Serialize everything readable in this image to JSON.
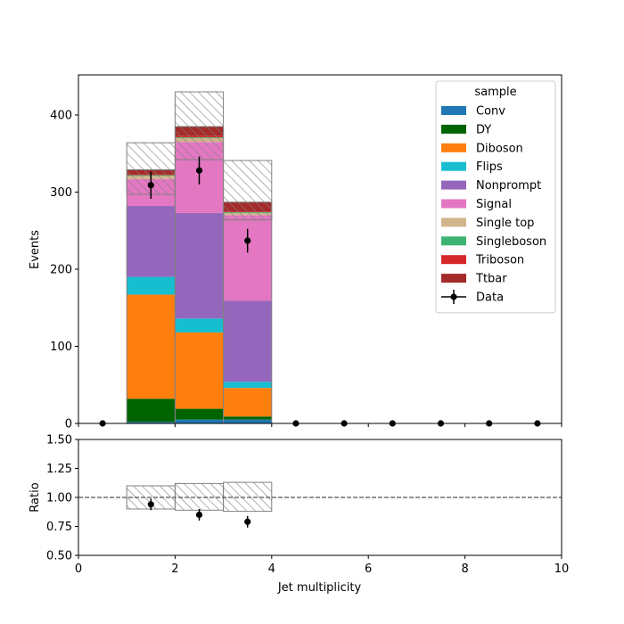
{
  "chart_data": {
    "type": "bar",
    "stacked": true,
    "xlabel": "Jet multiplicity",
    "bins": [
      [
        0,
        1
      ],
      [
        1,
        2
      ],
      [
        2,
        3
      ],
      [
        3,
        4
      ],
      [
        4,
        5
      ],
      [
        5,
        6
      ],
      [
        6,
        7
      ],
      [
        7,
        8
      ],
      [
        8,
        9
      ],
      [
        9,
        10
      ]
    ],
    "main": {
      "ylabel": "Events",
      "xlim": [
        0,
        10
      ],
      "ylim": [
        0,
        452
      ],
      "xticks": [
        "0",
        "2",
        "4",
        "6",
        "8",
        "10"
      ],
      "yticks": [
        "0",
        "100",
        "200",
        "300",
        "400"
      ],
      "legend": {
        "title": "sample",
        "position": "top-right"
      },
      "series": [
        {
          "name": "Conv",
          "color": "#1f77b4",
          "values": [
            0,
            2,
            5,
            5,
            0,
            0,
            0,
            0,
            0,
            0
          ]
        },
        {
          "name": "DY",
          "color": "#006400",
          "values": [
            0,
            30,
            14,
            4,
            0,
            0,
            0,
            0,
            0,
            0
          ]
        },
        {
          "name": "Diboson",
          "color": "#ff7f0e",
          "values": [
            0,
            135,
            99,
            37,
            0,
            0,
            0,
            0,
            0,
            0
          ]
        },
        {
          "name": "Flips",
          "color": "#17becf",
          "values": [
            0,
            23,
            18,
            8,
            0,
            0,
            0,
            0,
            0,
            0
          ]
        },
        {
          "name": "Nonprompt",
          "color": "#9467bd",
          "values": [
            0,
            92,
            137,
            105,
            0,
            0,
            0,
            0,
            0,
            0
          ]
        },
        {
          "name": "Signal",
          "color": "#e377c2",
          "values": [
            0,
            35,
            92,
            111,
            0,
            0,
            0,
            0,
            0,
            0
          ]
        },
        {
          "name": "Single top",
          "color": "#d2b48c",
          "values": [
            0,
            4,
            5,
            3,
            0,
            0,
            0,
            0,
            0,
            0
          ]
        },
        {
          "name": "Singleboson",
          "color": "#3cb371",
          "values": [
            0,
            1,
            1,
            1,
            0,
            0,
            0,
            0,
            0,
            0
          ]
        },
        {
          "name": "Triboson",
          "color": "#d62728",
          "values": [
            0,
            1,
            2,
            1,
            0,
            0,
            0,
            0,
            0,
            0
          ]
        },
        {
          "name": "Ttbar",
          "color": "#a52a2a",
          "values": [
            0,
            6,
            12,
            12,
            0,
            0,
            0,
            0,
            0,
            0
          ]
        }
      ],
      "uncertainty_band": {
        "low": [
          0,
          297,
          342,
          264,
          0,
          0,
          0,
          0,
          0,
          0
        ],
        "high": [
          0,
          364,
          430,
          341,
          0,
          0,
          0,
          0,
          0,
          0
        ]
      },
      "data": {
        "name": "Data",
        "x": [
          0.5,
          1.5,
          2.5,
          3.5,
          4.5,
          5.5,
          6.5,
          7.5,
          8.5,
          9.5
        ],
        "y": [
          0,
          309,
          328,
          237,
          0,
          0,
          0,
          0,
          0,
          0
        ],
        "yerr": [
          0,
          17.6,
          18.1,
          15.4,
          0,
          0,
          0,
          0,
          0,
          0
        ]
      }
    },
    "ratio": {
      "ylabel": "Ratio",
      "ylim": [
        0.5,
        1.5
      ],
      "yticks": [
        "0.50",
        "0.75",
        "1.00",
        "1.25",
        "1.50"
      ],
      "reference_line": 1.0,
      "band": {
        "low": [
          1,
          0.9,
          0.89,
          0.88,
          1,
          1,
          1,
          1,
          1,
          1
        ],
        "high": [
          1,
          1.1,
          1.12,
          1.13,
          1,
          1,
          1,
          1,
          1,
          1
        ]
      },
      "points": {
        "x": [
          1.5,
          2.5,
          3.5
        ],
        "y": [
          0.94,
          0.85,
          0.79
        ],
        "yerr": [
          0.05,
          0.05,
          0.05
        ]
      }
    }
  }
}
